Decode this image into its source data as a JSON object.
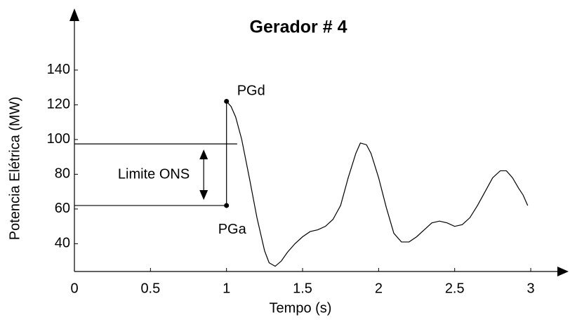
{
  "chart_data": {
    "type": "line",
    "title": "Gerador # 4",
    "xlabel": "Tempo (s)",
    "ylabel": "Potencia Elétrica (MW)",
    "xlim": [
      0,
      3.2
    ],
    "ylim": [
      24,
      172
    ],
    "xticks": [
      0,
      0.5,
      1,
      1.5,
      2,
      2.5,
      3
    ],
    "yticks": [
      40,
      60,
      80,
      100,
      120,
      140
    ],
    "series": [
      {
        "color": "#000000",
        "x": [
          1.0,
          1.03,
          1.06,
          1.1,
          1.15,
          1.2,
          1.25,
          1.28,
          1.32,
          1.36,
          1.4,
          1.45,
          1.5,
          1.55,
          1.6,
          1.65,
          1.7,
          1.75,
          1.8,
          1.85,
          1.88,
          1.92,
          1.95,
          2.0,
          2.05,
          2.1,
          2.15,
          2.2,
          2.25,
          2.3,
          2.35,
          2.4,
          2.45,
          2.5,
          2.55,
          2.6,
          2.65,
          2.7,
          2.75,
          2.8,
          2.84,
          2.88,
          2.92,
          2.95,
          2.98
        ],
        "values": [
          122,
          119,
          113,
          100,
          78,
          55,
          36,
          29,
          27,
          30,
          35,
          40,
          44,
          47,
          48,
          50,
          54,
          62,
          78,
          92,
          98,
          97,
          92,
          78,
          61,
          46,
          41,
          41,
          44,
          48,
          52,
          53,
          52,
          50,
          51,
          55,
          62,
          70,
          78,
          82,
          82,
          78,
          72,
          68,
          62
        ]
      }
    ],
    "annotations": {
      "limit_label": "Limite ONS",
      "upper_limit": 97.5,
      "upper_limit_end": 1.07,
      "lower_limit": 62,
      "arrow_x": 0.85,
      "pgd": {
        "label": "PGd",
        "x": 1,
        "y": 122
      },
      "pga": {
        "label": "PGa",
        "x": 1,
        "y": 62
      }
    }
  }
}
